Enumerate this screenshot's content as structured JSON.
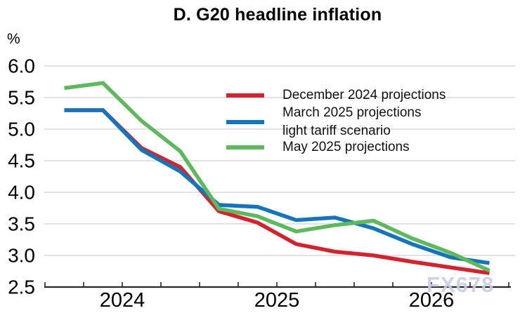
{
  "title": "D. G20 headline inflation",
  "y_axis_unit": "%",
  "watermark": "FX678",
  "chart_data": {
    "type": "line",
    "title": "D. G20 headline inflation",
    "ylabel": "%",
    "ylim": [
      2.5,
      6.0
    ],
    "yticks": [
      6.0,
      5.5,
      5.0,
      4.5,
      4.0,
      3.5,
      3.0,
      2.5
    ],
    "grid": "horizontal",
    "legend_position": "inside-top-right",
    "x_year_labels": [
      "2024",
      "2025",
      "2026"
    ],
    "categories": [
      "2024-Q1",
      "2024-Q2",
      "2024-Q3",
      "2024-Q4",
      "2025-Q1",
      "2025-Q2",
      "2025-Q3",
      "2025-Q4",
      "2026-Q1",
      "2026-Q2",
      "2026-Q3",
      "2026-Q4"
    ],
    "series": [
      {
        "name": "December 2024 projections",
        "color": "#d2232e",
        "values": [
          5.3,
          5.3,
          4.7,
          4.4,
          3.7,
          3.52,
          3.18,
          3.06,
          3.0,
          2.9,
          2.81,
          2.72
        ]
      },
      {
        "name": "March 2025 projections light tariff scenario",
        "legend_lines": [
          "March 2025 projections",
          " light tariff scenario"
        ],
        "color": "#1475bd",
        "values": [
          5.3,
          5.3,
          4.67,
          4.33,
          3.8,
          3.77,
          3.56,
          3.6,
          3.43,
          3.18,
          2.97,
          2.88
        ]
      },
      {
        "name": "May 2025 projections",
        "color": "#5eb85c",
        "values": [
          5.65,
          5.73,
          5.13,
          4.65,
          3.74,
          3.62,
          3.38,
          3.48,
          3.55,
          3.27,
          3.04,
          2.76
        ]
      }
    ],
    "axis_color": "#262626",
    "gridline_color": "#d9d9d9"
  }
}
